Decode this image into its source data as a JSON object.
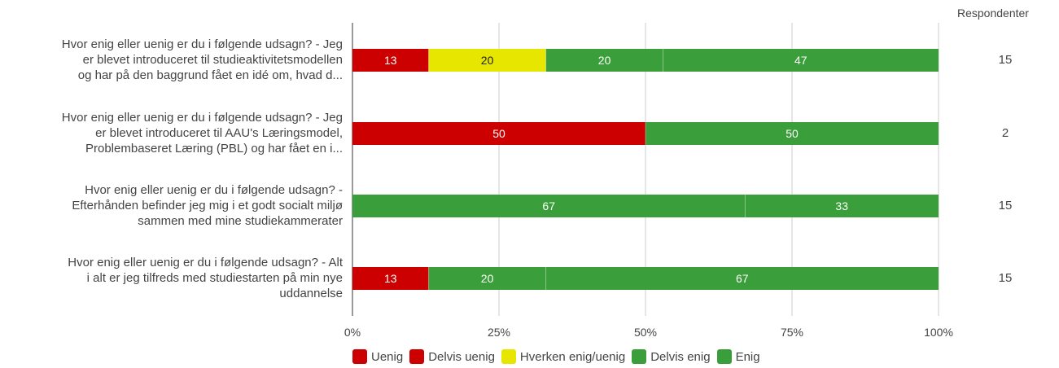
{
  "chart_data": {
    "type": "bar",
    "orientation": "horizontal",
    "stacked": true,
    "categories": [
      "Hvor enig eller uenig er du i følgende udsagn? - Jeg er blevet introduceret til studieaktivitetsmodellen og har på den baggrund fået en idé om, hvad d...",
      "Hvor enig eller uenig er du i følgende udsagn? - Jeg er blevet introduceret til AAU's Læringsmodel, Problembaseret Læring (PBL) og har fået en i...",
      "Hvor enig eller uenig er du i følgende udsagn? - Efterhånden befinder jeg mig i et godt socialt miljø sammen med mine studiekammerater",
      "Hvor enig eller uenig er du i følgende udsagn? - Alt i alt er jeg tilfreds med studiestarten på min nye uddannelse"
    ],
    "category_lines": [
      [
        "Hvor enig eller uenig er du i følgende udsagn? - Jeg",
        "er blevet introduceret til studieaktivitetsmodellen",
        "og har på den baggrund fået en idé om, hvad d..."
      ],
      [
        "Hvor enig eller uenig er du i følgende udsagn? - Jeg",
        "er blevet introduceret til AAU's Læringsmodel,",
        "Problembaseret Læring (PBL) og har fået en i..."
      ],
      [
        "Hvor enig eller uenig er du i følgende udsagn? -",
        "Efterhånden befinder jeg mig i et godt socialt miljø",
        "sammen med mine studiekammerater"
      ],
      [
        "Hvor enig eller uenig er du i følgende udsagn? - Alt",
        "i alt er jeg tilfreds med studiestarten på min nye",
        "uddannelse"
      ]
    ],
    "series": [
      {
        "name": "Uenig",
        "color": "#cc0000",
        "values": [
          0,
          0,
          0,
          0
        ]
      },
      {
        "name": "Delvis uenig",
        "color": "#cc0000",
        "values": [
          13,
          50,
          0,
          13
        ]
      },
      {
        "name": "Hverken enig/uenig",
        "color": "#e6e600",
        "values": [
          20,
          0,
          0,
          0
        ]
      },
      {
        "name": "Delvis enig",
        "color": "#3a9e3a",
        "values": [
          20,
          50,
          67,
          20
        ]
      },
      {
        "name": "Enig",
        "color": "#3a9e3a",
        "values": [
          47,
          0,
          33,
          67
        ]
      }
    ],
    "respondents_header": "Respondenter",
    "respondents": [
      15,
      2,
      15,
      15
    ],
    "xlim": [
      0,
      100
    ],
    "x_ticks": [
      "0%",
      "25%",
      "50%",
      "75%",
      "100%"
    ],
    "grid": true,
    "legend_position": "bottom"
  }
}
